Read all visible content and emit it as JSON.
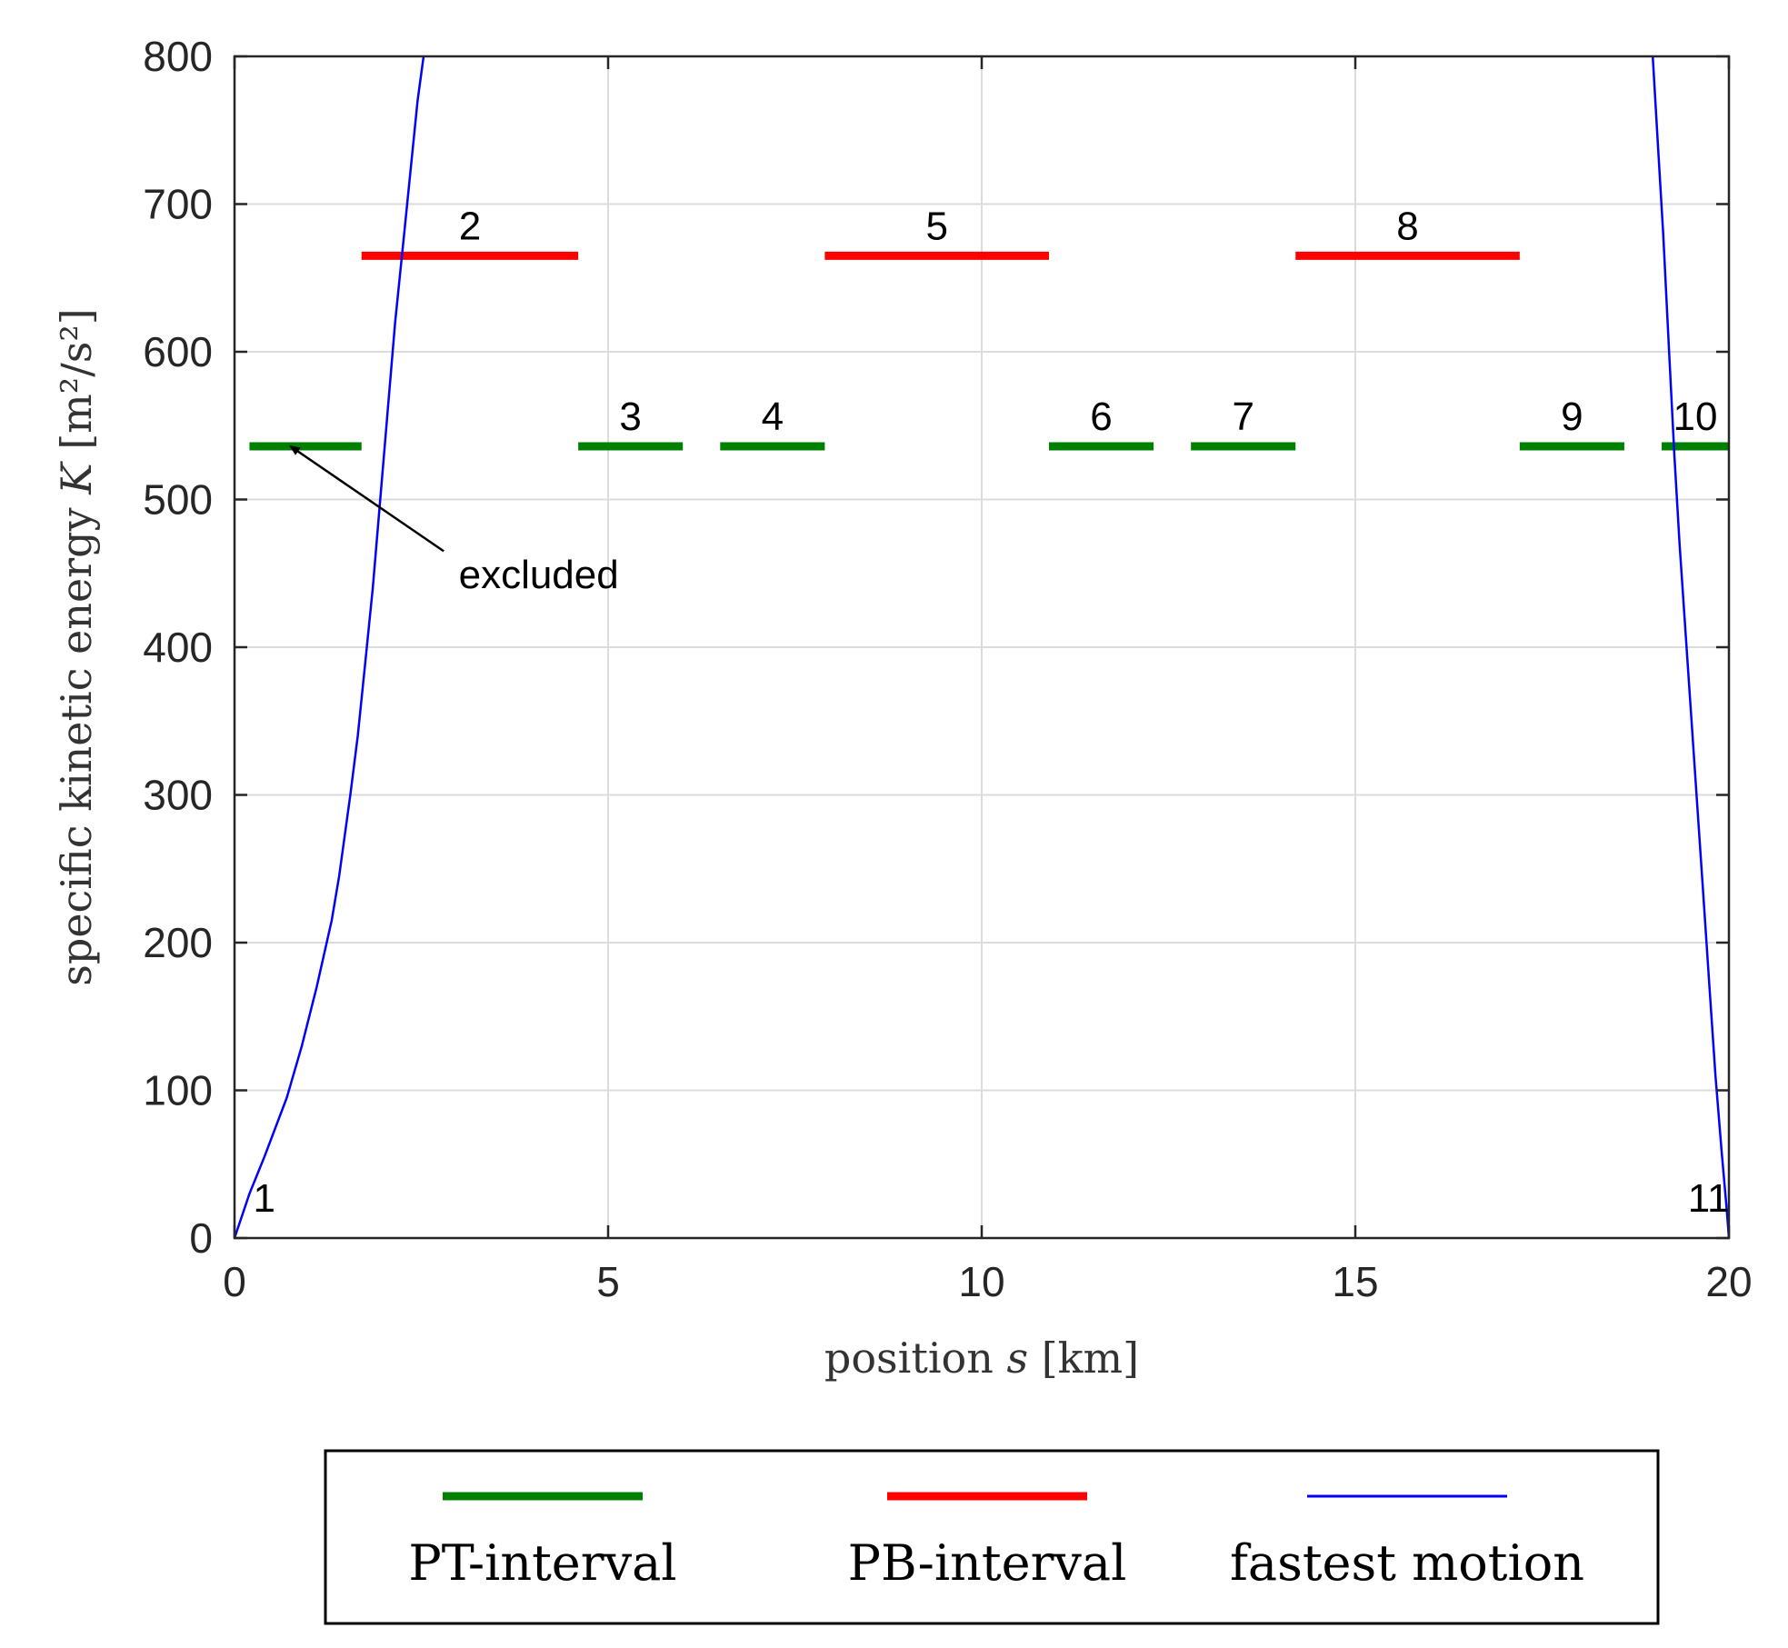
{
  "chart_data": {
    "type": "line",
    "xlabel": "position s [km]",
    "xlabel_parts": {
      "before": "position ",
      "var": "s",
      "after": " [km]"
    },
    "ylabel": "specific kinetic energy K [m²/s²]",
    "ylabel_parts": {
      "before": "specific kinetic energy ",
      "var": "K",
      "after": " [m²/s²]"
    },
    "xlim": [
      0,
      20
    ],
    "ylim": [
      0,
      800
    ],
    "xticks": [
      0,
      5,
      10,
      15,
      20
    ],
    "yticks": [
      0,
      100,
      200,
      300,
      400,
      500,
      600,
      700,
      800
    ],
    "grid": true,
    "legend_position": "below",
    "series": [
      {
        "name": "PT-interval",
        "color": "#008000",
        "kind": "segments",
        "segments": [
          {
            "label": "",
            "x": [
              0.2,
              1.7
            ],
            "y": 536
          },
          {
            "label": "3",
            "x": [
              4.6,
              6.0
            ],
            "y": 536
          },
          {
            "label": "4",
            "x": [
              6.5,
              7.9
            ],
            "y": 536
          },
          {
            "label": "6",
            "x": [
              10.9,
              12.3
            ],
            "y": 536
          },
          {
            "label": "7",
            "x": [
              12.8,
              14.2
            ],
            "y": 536
          },
          {
            "label": "9",
            "x": [
              17.2,
              18.6
            ],
            "y": 536
          },
          {
            "label": "10",
            "x": [
              19.1,
              20.0
            ],
            "y": 536
          }
        ]
      },
      {
        "name": "PB-interval",
        "color": "#ff0000",
        "kind": "segments",
        "segments": [
          {
            "label": "2",
            "x": [
              1.7,
              4.6
            ],
            "y": 665
          },
          {
            "label": "5",
            "x": [
              7.9,
              10.9
            ],
            "y": 665
          },
          {
            "label": "8",
            "x": [
              14.2,
              17.2
            ],
            "y": 665
          }
        ]
      },
      {
        "name": "fastest motion",
        "color": "#0000ff",
        "kind": "curves",
        "curves": [
          {
            "x": [
              0,
              0.2,
              0.4,
              0.7,
              0.9,
              1.1,
              1.3,
              1.4,
              1.55,
              1.65,
              1.75,
              1.85,
              1.95,
              2.05,
              2.15,
              2.25,
              2.35,
              2.45,
              2.53
            ],
            "y": [
              0,
              30,
              55,
              95,
              130,
              170,
              215,
              245,
              300,
              340,
              390,
              440,
              500,
              560,
              620,
              670,
              720,
              770,
              800
            ]
          },
          {
            "x": [
              18.98,
              19.05,
              19.12,
              19.2,
              19.27,
              19.34,
              19.42,
              19.5,
              19.58,
              19.66,
              19.74,
              19.82,
              19.9,
              19.97,
              20.0
            ],
            "y": [
              800,
              740,
              680,
              600,
              530,
              470,
              410,
              350,
              290,
              230,
              170,
              110,
              60,
              20,
              0
            ]
          }
        ]
      }
    ],
    "point_labels": [
      {
        "label": "1",
        "x": 0.25,
        "y": 18
      },
      {
        "label": "11",
        "x": 19.45,
        "y": 18
      }
    ],
    "annotations": [
      {
        "text": "excluded",
        "text_at": [
          3.0,
          440
        ],
        "arrow_from": [
          2.8,
          465
        ],
        "arrow_to": [
          0.75,
          536
        ]
      }
    ]
  }
}
